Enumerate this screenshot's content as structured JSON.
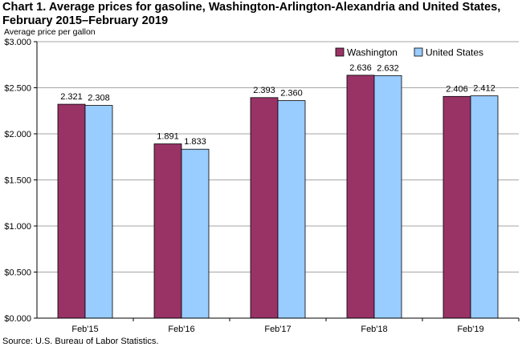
{
  "title": "Chart 1. Average prices for gasoline, Washington-Arlington-Alexandria and United States, February 2015–February 2019",
  "source": "Source: U.S. Bureau of Labor Statistics.",
  "chart_data": {
    "type": "bar",
    "title": "Chart 1. Average prices for gasoline, Washington-Arlington-Alexandria and United States, February 2015–February 2019",
    "ylabel": "Average price per gallon",
    "xlabel": "",
    "categories": [
      "Feb'15",
      "Feb'16",
      "Feb'17",
      "Feb'18",
      "Feb'19"
    ],
    "series": [
      {
        "name": "Washington",
        "color": "#993366",
        "values": [
          2.321,
          1.891,
          2.393,
          2.636,
          2.406
        ],
        "labels": [
          "2.321",
          "1.891",
          "2.393",
          "2.636",
          "2.406"
        ]
      },
      {
        "name": "United States",
        "color": "#99ccff",
        "values": [
          2.308,
          1.833,
          2.36,
          2.632,
          2.412
        ],
        "labels": [
          "2.308",
          "1.833",
          "2.360",
          "2.632",
          "2.412"
        ]
      }
    ],
    "ylim": [
      0,
      3
    ],
    "yticks": [
      0,
      0.5,
      1,
      1.5,
      2,
      2.5,
      3
    ],
    "ytick_labels": [
      "$0.000",
      "$0.500",
      "$1.000",
      "$1.500",
      "$2.000",
      "$2.500",
      "$3.000"
    ],
    "grid": true,
    "legend": "top-right"
  }
}
